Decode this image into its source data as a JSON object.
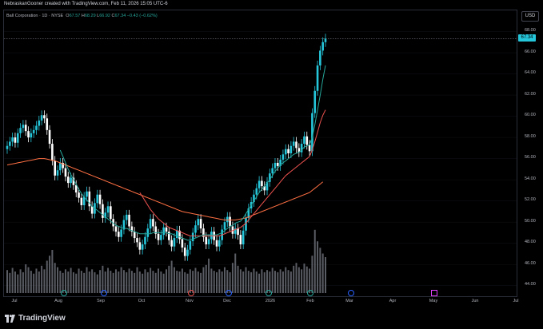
{
  "attribution": "NebraskanGooner created with TradingView.com, Feb 11, 2026 15:05 UTC-6",
  "legend": {
    "symbol": "Ball Corporation · 1D · NYSE",
    "o_label": "O",
    "o": "67.57",
    "h_label": "H",
    "h": "68.29",
    "l_label": "L",
    "l": "66.92",
    "c_label": "C",
    "c": "67.34",
    "change": "−0.43 (−0.62%)"
  },
  "currency": "USD",
  "last_price": "67.34",
  "colors": {
    "up": "#26c6da",
    "down": "#ffffff",
    "ma_fast": "#26a69a",
    "ma_mid": "#ef5350",
    "ma_slow": "#ff7043",
    "volume": "#787b86",
    "event_earnings": "#2962ff",
    "event_dividend": "#e040fb"
  },
  "y_ticks": [
    "68.00",
    "66.00",
    "64.00",
    "62.00",
    "60.00",
    "58.00",
    "56.00",
    "54.00",
    "52.00",
    "50.00",
    "48.00",
    "46.00",
    "44.00"
  ],
  "x_ticks": [
    "Jul",
    "Aug",
    "Sep",
    "Oct",
    "Nov",
    "Dec",
    "2026",
    "Feb",
    "Mar",
    "Apr",
    "May",
    "Jun",
    "Jul"
  ],
  "events": [
    {
      "icon": "dividend-icon"
    },
    {
      "icon": "earnings-icon"
    },
    {
      "icon": "dividend-icon"
    },
    {
      "icon": "earnings-icon"
    },
    {
      "icon": "dividend-icon"
    },
    {
      "icon": "earnings-icon"
    },
    {
      "icon": "dividend-icon"
    },
    {
      "icon": "earnings-icon"
    },
    {
      "icon": "split-icon"
    }
  ],
  "chart_data": {
    "type": "candlestick",
    "ylim": [
      43,
      70
    ],
    "price_series": [
      57.2,
      57.6,
      58.0,
      57.5,
      58.4,
      58.9,
      59.2,
      58.6,
      58.0,
      58.4,
      58.7,
      59.1,
      59.6,
      60.1,
      59.8,
      58.7,
      57.4,
      55.8,
      54.4,
      54.9,
      55.6,
      55.1,
      54.3,
      53.7,
      54.2,
      53.5,
      52.8,
      52.3,
      51.6,
      52.4,
      52.9,
      51.5,
      50.8,
      51.8,
      52.6,
      51.7,
      50.4,
      50.9,
      51.5,
      50.3,
      49.6,
      49.1,
      48.6,
      49.3,
      50.2,
      50.7,
      49.6,
      49.1,
      48.5,
      48.1,
      47.4,
      47.9,
      48.6,
      49.4,
      50.3,
      49.6,
      48.9,
      48.3,
      48.8,
      49.5,
      49.1,
      48.3,
      47.7,
      48.5,
      49.2,
      48.4,
      47.6,
      46.8,
      47.4,
      48.2,
      49.0,
      49.7,
      50.3,
      49.4,
      48.6,
      47.9,
      48.4,
      49.1,
      48.3,
      47.7,
      48.3,
      49.3,
      50.0,
      50.5,
      49.6,
      48.9,
      49.4,
      48.8,
      47.9,
      49.2,
      50.4,
      51.3,
      51.9,
      52.6,
      53.2,
      53.9,
      53.4,
      53.0,
      53.8,
      54.6,
      55.1,
      55.6,
      55.3,
      55.9,
      56.4,
      56.9,
      56.5,
      57.2,
      57.6,
      57.0,
      56.6,
      57.4,
      58.1,
      57.3,
      56.7,
      60.3,
      62.4,
      64.8,
      66.2,
      67.0,
      67.34
    ],
    "ma_fast": [
      null,
      null,
      null,
      null,
      null,
      null,
      null,
      null,
      null,
      null,
      null,
      null,
      null,
      null,
      null,
      null,
      null,
      null,
      null,
      null,
      56.8,
      56.2,
      55.6,
      55.0,
      54.5,
      54.0,
      53.6,
      53.1,
      52.7,
      52.4,
      52.1,
      51.8,
      51.5,
      51.3,
      51.1,
      50.9,
      50.7,
      50.5,
      50.3,
      50.1,
      49.9,
      49.7,
      49.6,
      49.5,
      49.4,
      49.4,
      49.3,
      49.2,
      49.1,
      49.0,
      48.9,
      48.9,
      48.9,
      48.9,
      48.9,
      49.0,
      49.0,
      49.0,
      49.0,
      49.0,
      49.0,
      48.9,
      48.9,
      48.8,
      48.7,
      48.6,
      48.5,
      48.4,
      48.3,
      48.3,
      48.4,
      48.5,
      48.6,
      48.7,
      48.8,
      48.8,
      48.8,
      48.8,
      48.8,
      48.8,
      48.9,
      49.0,
      49.2,
      49.4,
      49.6,
      49.7,
      49.9,
      50.0,
      50.1,
      50.4,
      50.8,
      51.2,
      51.6,
      52.0,
      52.4,
      52.8,
      53.1,
      53.4,
      53.7,
      54.0,
      54.4,
      54.8,
      55.1,
      55.4,
      55.6,
      55.8,
      56.0,
      56.2,
      56.4,
      56.5,
      56.6,
      56.8,
      57.1,
      57.2,
      57.3,
      58.0,
      59.2,
      60.6,
      62.0,
      63.5,
      64.8
    ],
    "ma_mid": [
      null,
      null,
      null,
      null,
      null,
      null,
      null,
      null,
      null,
      null,
      null,
      null,
      null,
      null,
      null,
      null,
      null,
      null,
      null,
      null,
      null,
      null,
      null,
      null,
      null,
      null,
      null,
      null,
      null,
      null,
      null,
      null,
      null,
      null,
      null,
      null,
      null,
      null,
      null,
      null,
      null,
      null,
      null,
      null,
      null,
      null,
      null,
      null,
      null,
      null,
      52.8,
      52.4,
      52.0,
      51.6,
      51.2,
      50.9,
      50.6,
      50.3,
      50.1,
      49.9,
      49.7,
      49.5,
      49.4,
      49.3,
      49.2,
      49.1,
      49.0,
      48.9,
      48.8,
      48.7,
      48.7,
      48.7,
      48.7,
      48.7,
      48.7,
      48.7,
      48.7,
      48.7,
      48.7,
      48.7,
      48.7,
      48.8,
      48.9,
      49.0,
      49.1,
      49.2,
      49.3,
      49.4,
      49.5,
      49.7,
      49.9,
      50.2,
      50.5,
      50.8,
      51.1,
      51.4,
      51.7,
      52.0,
      52.3,
      52.6,
      52.9,
      53.2,
      53.5,
      53.8,
      54.1,
      54.4,
      54.6,
      54.8,
      55.0,
      55.2,
      55.4,
      55.6,
      55.8,
      56.0,
      56.2,
      56.8,
      57.6,
      58.5,
      59.4,
      60.1,
      60.6
    ],
    "ma_slow": [
      55.4,
      55.45,
      55.5,
      55.55,
      55.6,
      55.65,
      55.7,
      55.75,
      55.8,
      55.85,
      55.9,
      55.95,
      56.0,
      56.0,
      56.0,
      55.95,
      55.9,
      55.85,
      55.8,
      55.7,
      55.6,
      55.5,
      55.4,
      55.3,
      55.2,
      55.1,
      55.0,
      54.9,
      54.8,
      54.7,
      54.6,
      54.5,
      54.4,
      54.3,
      54.2,
      54.1,
      54.0,
      53.9,
      53.8,
      53.7,
      53.6,
      53.5,
      53.4,
      53.3,
      53.2,
      53.1,
      53.0,
      52.9,
      52.8,
      52.7,
      52.6,
      52.5,
      52.4,
      52.3,
      52.2,
      52.1,
      52.0,
      51.9,
      51.8,
      51.7,
      51.6,
      51.5,
      51.4,
      51.3,
      51.2,
      51.1,
      51.0,
      50.95,
      50.9,
      50.85,
      50.8,
      50.75,
      50.7,
      50.65,
      50.6,
      50.55,
      50.5,
      50.45,
      50.4,
      50.35,
      50.3,
      50.25,
      50.2,
      50.2,
      50.2,
      50.2,
      50.2,
      50.25,
      50.3,
      50.35,
      50.4,
      50.5,
      50.6,
      50.7,
      50.8,
      50.9,
      51.0,
      51.1,
      51.2,
      51.3,
      51.4,
      51.5,
      51.6,
      51.7,
      51.8,
      51.9,
      52.0,
      52.1,
      52.2,
      52.3,
      52.4,
      52.5,
      52.6,
      52.7,
      52.8,
      53.0,
      53.2,
      53.4,
      53.6,
      53.8
    ],
    "volume": [
      0.32,
      0.28,
      0.35,
      0.3,
      0.26,
      0.33,
      0.29,
      0.4,
      0.36,
      0.31,
      0.27,
      0.34,
      0.3,
      0.38,
      0.33,
      0.45,
      0.52,
      0.6,
      0.42,
      0.36,
      0.31,
      0.28,
      0.33,
      0.3,
      0.35,
      0.29,
      0.27,
      0.34,
      0.31,
      0.28,
      0.36,
      0.3,
      0.33,
      0.29,
      0.26,
      0.32,
      0.38,
      0.3,
      0.35,
      0.31,
      0.28,
      0.33,
      0.3,
      0.36,
      0.32,
      0.29,
      0.34,
      0.31,
      0.28,
      0.36,
      0.3,
      0.27,
      0.33,
      0.29,
      0.35,
      0.31,
      0.28,
      0.34,
      0.3,
      0.27,
      0.33,
      0.38,
      0.45,
      0.36,
      0.31,
      0.3,
      0.34,
      0.29,
      0.27,
      0.33,
      0.31,
      0.35,
      0.3,
      0.28,
      0.36,
      0.39,
      0.48,
      0.34,
      0.31,
      0.29,
      0.33,
      0.3,
      0.36,
      0.32,
      0.29,
      0.42,
      0.55,
      0.38,
      0.33,
      0.3,
      0.36,
      0.31,
      0.29,
      0.34,
      0.3,
      0.27,
      0.33,
      0.29,
      0.32,
      0.3,
      0.35,
      0.31,
      0.29,
      0.33,
      0.3,
      0.36,
      0.32,
      0.3,
      0.38,
      0.42,
      0.36,
      0.33,
      0.41,
      0.37,
      0.34,
      0.52,
      0.88,
      0.72,
      0.63,
      0.55,
      0.5
    ]
  }
}
